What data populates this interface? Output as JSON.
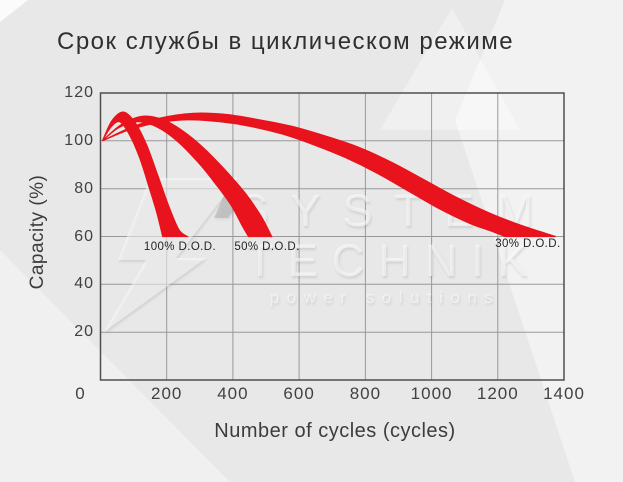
{
  "title": "Срок службы в циклическом режиме",
  "watermark": {
    "line1": "SYSTEM",
    "line2": "TECHNIK",
    "line3": "power solutions"
  },
  "colors": {
    "band_red": "#e8131c",
    "grid": "#999999",
    "axis_border": "#4f4f4f",
    "text_dark": "#3c3c3c",
    "background": "#e8e8e8"
  },
  "chart_data": {
    "type": "area",
    "title": "Срок службы в циклическом режиме",
    "xlabel": "Number of cycles (cycles)",
    "ylabel": "Capacity (%)",
    "xlim": [
      0,
      1400
    ],
    "ylim": [
      0,
      120
    ],
    "x_ticks": [
      0,
      200,
      400,
      600,
      800,
      1000,
      1200,
      1400
    ],
    "y_ticks": [
      0,
      20,
      40,
      60,
      80,
      100,
      120
    ],
    "grid": true,
    "legend": "inline-labels",
    "band_color": "#e8131c",
    "description": "Three red capacity-fade bands (upper/lower bounds) starting at 100% capacity, peaking ~110-112%, fading to 60% capacity at different cycle counts depending on depth of discharge",
    "series": [
      {
        "name": "100% D.O.D.",
        "label": "100% D.O.D.",
        "label_anchor": {
          "x": 240,
          "y": 55.5
        },
        "top": [
          [
            6,
            100
          ],
          [
            35,
            108.5
          ],
          [
            70,
            112
          ],
          [
            105,
            107.5
          ],
          [
            140,
            98
          ],
          [
            172,
            86
          ],
          [
            204,
            73.5
          ],
          [
            236,
            63
          ],
          [
            262,
            60
          ]
        ],
        "bottom": [
          [
            6,
            100
          ],
          [
            30,
            105.5
          ],
          [
            58,
            108
          ],
          [
            88,
            102.5
          ],
          [
            118,
            93
          ],
          [
            146,
            81
          ],
          [
            170,
            70
          ],
          [
            188,
            60
          ]
        ]
      },
      {
        "name": "50% D.O.D.",
        "label": "50% D.O.D.",
        "label_anchor": {
          "x": 503,
          "y": 55.5
        },
        "top": [
          [
            6,
            100
          ],
          [
            65,
            107
          ],
          [
            130,
            110.3
          ],
          [
            195,
            108.5
          ],
          [
            255,
            103.5
          ],
          [
            315,
            96.5
          ],
          [
            375,
            88
          ],
          [
            435,
            78.5
          ],
          [
            485,
            68.5
          ],
          [
            517,
            60
          ]
        ],
        "bottom": [
          [
            6,
            100
          ],
          [
            55,
            105.5
          ],
          [
            115,
            108
          ],
          [
            175,
            105.5
          ],
          [
            235,
            99.5
          ],
          [
            295,
            91
          ],
          [
            345,
            82.5
          ],
          [
            395,
            73
          ],
          [
            430,
            64
          ],
          [
            447,
            60
          ]
        ]
      },
      {
        "name": "30% D.O.D.",
        "label": "30% D.O.D.",
        "label_anchor": {
          "x": 1291,
          "y": 56.8
        },
        "top": [
          [
            6,
            100
          ],
          [
            90,
            105.5
          ],
          [
            180,
            109.5
          ],
          [
            280,
            111.5
          ],
          [
            380,
            111
          ],
          [
            480,
            108.8
          ],
          [
            580,
            106
          ],
          [
            680,
            102
          ],
          [
            780,
            97.3
          ],
          [
            880,
            91
          ],
          [
            980,
            83.5
          ],
          [
            1080,
            76
          ],
          [
            1180,
            69.5
          ],
          [
            1280,
            64.2
          ],
          [
            1375,
            60
          ]
        ],
        "bottom": [
          [
            6,
            100
          ],
          [
            85,
            104.5
          ],
          [
            170,
            107.5
          ],
          [
            265,
            108.8
          ],
          [
            360,
            108
          ],
          [
            455,
            106
          ],
          [
            550,
            102.8
          ],
          [
            645,
            98.3
          ],
          [
            740,
            93
          ],
          [
            835,
            86.5
          ],
          [
            930,
            79
          ],
          [
            1025,
            71.5
          ],
          [
            1115,
            65.5
          ],
          [
            1175,
            62.5
          ],
          [
            1222,
            60
          ]
        ]
      }
    ]
  }
}
